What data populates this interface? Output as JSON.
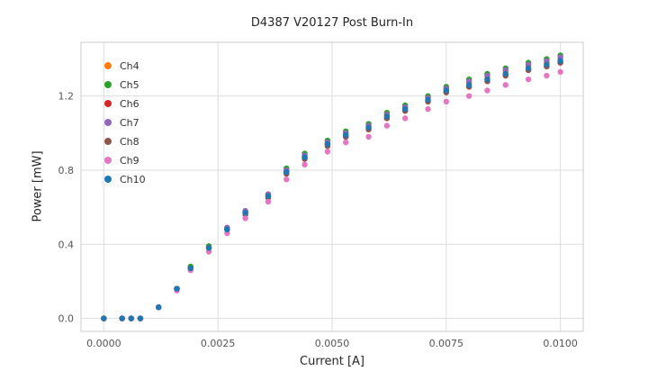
{
  "chart_data": {
    "type": "scatter",
    "title": "D4387 V20127 Post Burn-In",
    "xlabel": "Current [A]",
    "ylabel": "Power [mW]",
    "grid": true,
    "grid_color": "#dddddd",
    "axes_border_color": "#cccccc",
    "background": "#ffffff",
    "legend_position": "upper left",
    "xlim": [
      -0.0005,
      0.0105
    ],
    "ylim": [
      -0.07,
      1.49
    ],
    "x_ticks": [
      0.0,
      0.0025,
      0.005,
      0.0075,
      0.01
    ],
    "x_tick_labels": [
      "0.0000",
      "0.0025",
      "0.0050",
      "0.0075",
      "0.0100"
    ],
    "y_ticks": [
      0.0,
      0.4,
      0.8,
      1.2
    ],
    "y_tick_labels": [
      "0.0",
      "0.4",
      "0.8",
      "1.2"
    ],
    "x": [
      0.0,
      0.0004,
      0.0006,
      0.0008,
      0.0012,
      0.0016,
      0.0019,
      0.0023,
      0.0027,
      0.0031,
      0.0036,
      0.004,
      0.0044,
      0.0049,
      0.0053,
      0.0058,
      0.0062,
      0.0066,
      0.0071,
      0.0075,
      0.008,
      0.0084,
      0.0088,
      0.0093,
      0.0097,
      0.01
    ],
    "series": [
      {
        "name": "Ch4",
        "color": "#ff7f0e",
        "values": [
          0.0,
          0.0,
          0.0,
          0.0,
          0.06,
          0.16,
          0.27,
          0.38,
          0.48,
          0.57,
          0.66,
          0.79,
          0.87,
          0.94,
          0.99,
          1.04,
          1.1,
          1.14,
          1.19,
          1.24,
          1.27,
          1.3,
          1.33,
          1.36,
          1.38,
          1.4
        ]
      },
      {
        "name": "Ch5",
        "color": "#2ca02c",
        "values": [
          0.0,
          0.0,
          0.0,
          0.0,
          0.06,
          0.16,
          0.28,
          0.39,
          0.49,
          0.58,
          0.67,
          0.81,
          0.89,
          0.96,
          1.01,
          1.05,
          1.11,
          1.15,
          1.2,
          1.25,
          1.29,
          1.32,
          1.35,
          1.38,
          1.4,
          1.42
        ]
      },
      {
        "name": "Ch6",
        "color": "#d62728",
        "values": [
          0.0,
          0.0,
          0.0,
          0.0,
          0.06,
          0.16,
          0.27,
          0.38,
          0.48,
          0.57,
          0.66,
          0.79,
          0.87,
          0.94,
          0.98,
          1.02,
          1.08,
          1.12,
          1.17,
          1.22,
          1.25,
          1.28,
          1.31,
          1.34,
          1.36,
          1.38
        ]
      },
      {
        "name": "Ch7",
        "color": "#9467bd",
        "values": [
          0.0,
          0.0,
          0.0,
          0.0,
          0.06,
          0.16,
          0.27,
          0.38,
          0.49,
          0.58,
          0.67,
          0.8,
          0.88,
          0.95,
          1.0,
          1.04,
          1.1,
          1.14,
          1.19,
          1.24,
          1.28,
          1.31,
          1.34,
          1.37,
          1.39,
          1.41
        ]
      },
      {
        "name": "Ch8",
        "color": "#8c564b",
        "values": [
          0.0,
          0.0,
          0.0,
          0.0,
          0.06,
          0.16,
          0.27,
          0.38,
          0.48,
          0.56,
          0.65,
          0.78,
          0.86,
          0.93,
          0.98,
          1.02,
          1.08,
          1.12,
          1.17,
          1.22,
          1.25,
          1.28,
          1.31,
          1.34,
          1.36,
          1.38
        ]
      },
      {
        "name": "Ch9",
        "color": "#e377c2",
        "values": [
          0.0,
          0.0,
          0.0,
          0.0,
          0.06,
          0.15,
          0.26,
          0.36,
          0.46,
          0.54,
          0.63,
          0.75,
          0.83,
          0.9,
          0.95,
          0.98,
          1.04,
          1.08,
          1.13,
          1.17,
          1.2,
          1.23,
          1.26,
          1.29,
          1.31,
          1.33
        ]
      },
      {
        "name": "Ch10",
        "color": "#1f77b4",
        "values": [
          0.0,
          0.0,
          0.0,
          0.0,
          0.06,
          0.16,
          0.27,
          0.38,
          0.48,
          0.57,
          0.66,
          0.79,
          0.87,
          0.94,
          0.99,
          1.03,
          1.09,
          1.13,
          1.18,
          1.23,
          1.26,
          1.29,
          1.32,
          1.35,
          1.37,
          1.39
        ]
      }
    ],
    "marker_size_px": 3.2
  }
}
